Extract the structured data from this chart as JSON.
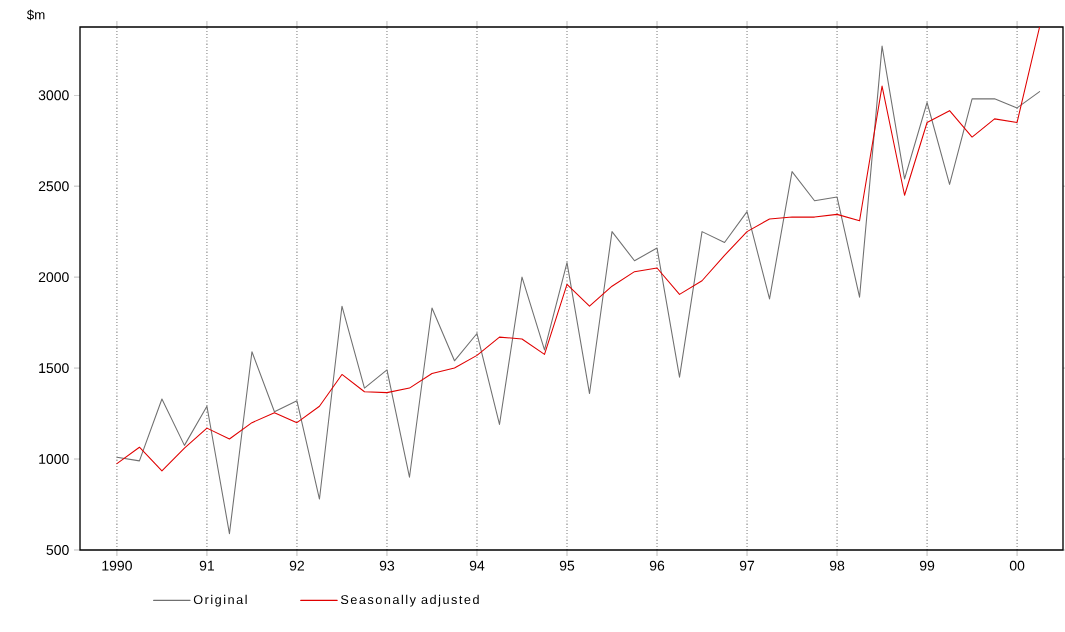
{
  "chart_data": {
    "type": "line",
    "ylabel": "$m",
    "x": [
      1990.0,
      1990.25,
      1990.5,
      1990.75,
      1991.0,
      1991.25,
      1991.5,
      1991.75,
      1992.0,
      1992.25,
      1992.5,
      1992.75,
      1993.0,
      1993.25,
      1993.5,
      1993.75,
      1994.0,
      1994.25,
      1994.5,
      1994.75,
      1995.0,
      1995.25,
      1995.5,
      1995.75,
      1996.0,
      1996.25,
      1996.5,
      1996.75,
      1997.0,
      1997.25,
      1997.5,
      1997.75,
      1998.0,
      1998.25,
      1998.5,
      1998.75,
      1999.0,
      1999.25,
      1999.5,
      1999.75,
      2000.0,
      2000.25
    ],
    "series": [
      {
        "name": "Original",
        "color": "#707070",
        "values": [
          1010,
          990,
          1330,
          1075,
          1290,
          590,
          1590,
          1260,
          1320,
          780,
          1840,
          1390,
          1490,
          900,
          1830,
          1540,
          1690,
          1190,
          2000,
          1600,
          2080,
          1360,
          2250,
          2090,
          2160,
          1450,
          2250,
          2190,
          2360,
          1880,
          2580,
          2420,
          2440,
          1890,
          3270,
          2540,
          2960,
          2510,
          2980,
          2980,
          2930,
          3020
        ]
      },
      {
        "name": "Seasonally adjusted",
        "color": "#e00000",
        "values": [
          975,
          1065,
          935,
          1060,
          1170,
          1110,
          1200,
          1255,
          1200,
          1290,
          1465,
          1370,
          1365,
          1390,
          1470,
          1500,
          1570,
          1670,
          1660,
          1575,
          1960,
          1840,
          1950,
          2030,
          2050,
          1905,
          1980,
          2120,
          2250,
          2320,
          2330,
          2330,
          2345,
          2310,
          3050,
          2450,
          2850,
          2915,
          2770,
          2870,
          2850,
          3375
        ]
      }
    ],
    "xlim": [
      1989.59,
      2000.51
    ],
    "ylim": [
      500,
      3375
    ],
    "xticks": [
      {
        "value": 1990,
        "label": "1990"
      },
      {
        "value": 1991,
        "label": "91"
      },
      {
        "value": 1992,
        "label": "92"
      },
      {
        "value": 1993,
        "label": "93"
      },
      {
        "value": 1994,
        "label": "94"
      },
      {
        "value": 1995,
        "label": "95"
      },
      {
        "value": 1996,
        "label": "96"
      },
      {
        "value": 1997,
        "label": "97"
      },
      {
        "value": 1998,
        "label": "98"
      },
      {
        "value": 1999,
        "label": "99"
      },
      {
        "value": 2000,
        "label": "00"
      }
    ],
    "yticks": [
      500,
      1000,
      1500,
      2000,
      2500,
      3000
    ],
    "grid": "x",
    "legend": "bottom",
    "marker": "none",
    "line_style": "solid"
  }
}
